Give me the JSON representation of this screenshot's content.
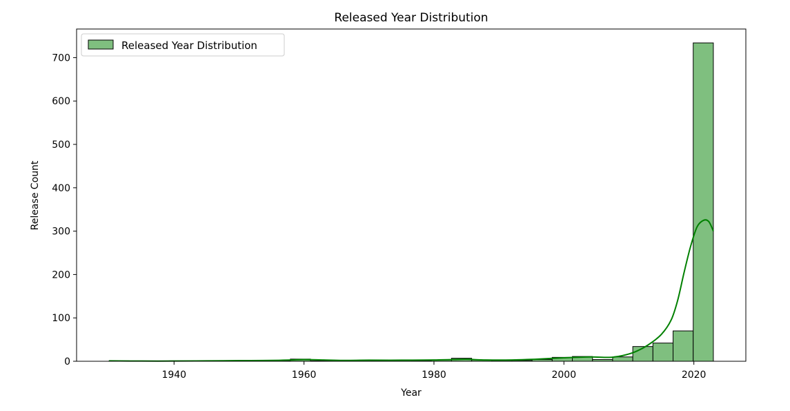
{
  "chart_data": {
    "type": "bar",
    "title": "Released Year Distribution",
    "xlabel": "Year",
    "ylabel": "Release Count",
    "xlim": [
      1925,
      2028
    ],
    "ylim": [
      0,
      766
    ],
    "x_ticks": [
      1940,
      1960,
      1980,
      2000,
      2020
    ],
    "y_ticks": [
      0,
      100,
      200,
      300,
      400,
      500,
      600,
      700
    ],
    "grid": false,
    "legend": {
      "position": "top-left",
      "entries": [
        "Released Year Distribution"
      ]
    },
    "colors": {
      "bar_fill": "#7fbf7f",
      "bar_edge": "#000000",
      "kde_line": "#008000"
    },
    "bins": [
      {
        "start": 1930.0,
        "end": 1933.1,
        "count": 1
      },
      {
        "start": 1933.1,
        "end": 1936.2,
        "count": 0
      },
      {
        "start": 1936.2,
        "end": 1939.3,
        "count": 0
      },
      {
        "start": 1939.3,
        "end": 1942.4,
        "count": 1
      },
      {
        "start": 1942.4,
        "end": 1945.5,
        "count": 0
      },
      {
        "start": 1945.5,
        "end": 1948.6,
        "count": 1
      },
      {
        "start": 1948.6,
        "end": 1951.7,
        "count": 0
      },
      {
        "start": 1951.7,
        "end": 1954.8,
        "count": 1
      },
      {
        "start": 1954.8,
        "end": 1957.9,
        "count": 1
      },
      {
        "start": 1957.9,
        "end": 1961.0,
        "count": 5
      },
      {
        "start": 1961.0,
        "end": 1964.1,
        "count": 1
      },
      {
        "start": 1964.1,
        "end": 1967.2,
        "count": 1
      },
      {
        "start": 1967.2,
        "end": 1970.3,
        "count": 2
      },
      {
        "start": 1970.3,
        "end": 1973.4,
        "count": 1
      },
      {
        "start": 1973.4,
        "end": 1976.5,
        "count": 2
      },
      {
        "start": 1976.5,
        "end": 1979.6,
        "count": 1
      },
      {
        "start": 1979.6,
        "end": 1982.7,
        "count": 3
      },
      {
        "start": 1982.7,
        "end": 1985.8,
        "count": 7
      },
      {
        "start": 1985.8,
        "end": 1988.9,
        "count": 3
      },
      {
        "start": 1988.9,
        "end": 1992.0,
        "count": 2
      },
      {
        "start": 1992.0,
        "end": 1995.1,
        "count": 2
      },
      {
        "start": 1995.1,
        "end": 1998.2,
        "count": 4
      },
      {
        "start": 1998.2,
        "end": 2001.3,
        "count": 9
      },
      {
        "start": 2001.3,
        "end": 2004.4,
        "count": 11
      },
      {
        "start": 2004.4,
        "end": 2007.5,
        "count": 4
      },
      {
        "start": 2007.5,
        "end": 2010.6,
        "count": 10
      },
      {
        "start": 2010.6,
        "end": 2013.7,
        "count": 34
      },
      {
        "start": 2013.7,
        "end": 2016.8,
        "count": 42
      },
      {
        "start": 2016.8,
        "end": 2019.9,
        "count": 70
      },
      {
        "start": 2019.9,
        "end": 2023.0,
        "count": 734
      }
    ],
    "kde": {
      "x": [
        1930,
        1935,
        1940,
        1945,
        1950,
        1955,
        1958,
        1960,
        1963,
        1966,
        1970,
        1975,
        1980,
        1983,
        1985,
        1988,
        1992,
        1996,
        2000,
        2004,
        2007,
        2009,
        2011,
        2013,
        2015,
        2016.5,
        2017.5,
        2018.5,
        2019.5,
        2020.5,
        2021.5,
        2022.3,
        2023
      ],
      "y": [
        1,
        0.5,
        0.5,
        1,
        1.5,
        2,
        3,
        4,
        3,
        2,
        2.5,
        2.5,
        3,
        4,
        4.5,
        3,
        3,
        5,
        8,
        10,
        9,
        13,
        22,
        38,
        62,
        95,
        140,
        205,
        265,
        310,
        325,
        322,
        300
      ]
    }
  }
}
